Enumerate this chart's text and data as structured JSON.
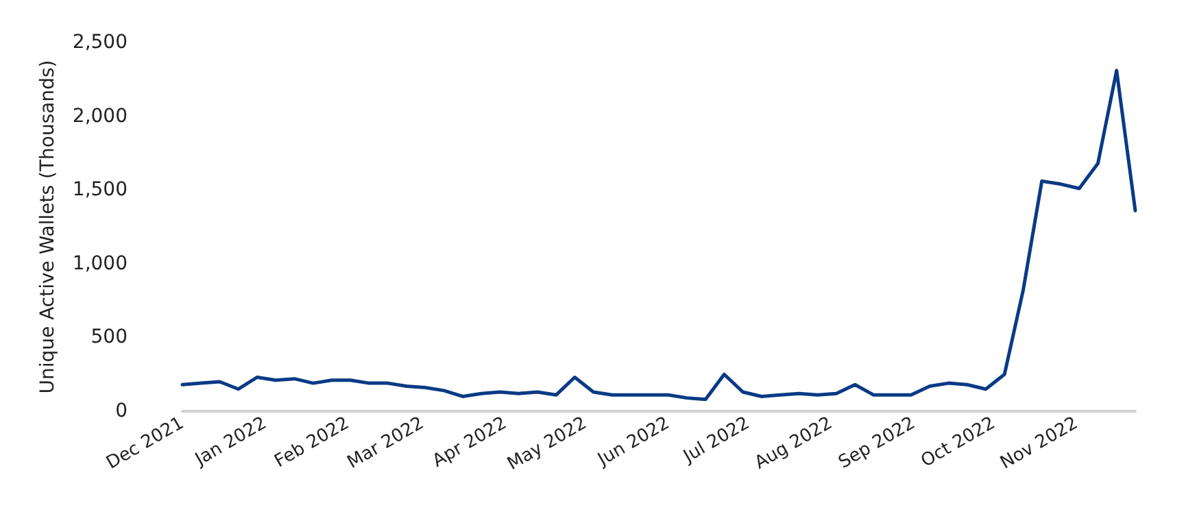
{
  "chart_data": {
    "type": "line",
    "ylabel": "Unique Active Wallets (Thousands)",
    "x": [
      "2021-12-01",
      "2021-12-08",
      "2021-12-15",
      "2021-12-22",
      "2021-12-29",
      "2022-01-05",
      "2022-01-12",
      "2022-01-19",
      "2022-01-26",
      "2022-02-02",
      "2022-02-09",
      "2022-02-16",
      "2022-02-23",
      "2022-03-02",
      "2022-03-09",
      "2022-03-16",
      "2022-03-23",
      "2022-03-30",
      "2022-04-06",
      "2022-04-13",
      "2022-04-20",
      "2022-04-27",
      "2022-05-04",
      "2022-05-11",
      "2022-05-18",
      "2022-05-25",
      "2022-06-01",
      "2022-06-08",
      "2022-06-15",
      "2022-06-22",
      "2022-06-29",
      "2022-07-06",
      "2022-07-13",
      "2022-07-20",
      "2022-07-27",
      "2022-08-03",
      "2022-08-10",
      "2022-08-17",
      "2022-08-24",
      "2022-08-31",
      "2022-09-07",
      "2022-09-14",
      "2022-09-21",
      "2022-09-28",
      "2022-10-05",
      "2022-10-12",
      "2022-10-19",
      "2022-10-26",
      "2022-11-02",
      "2022-11-09",
      "2022-11-16",
      "2022-11-23"
    ],
    "series": [
      {
        "color": "#0a3a85",
        "values": [
          180,
          190,
          200,
          150,
          230,
          210,
          220,
          190,
          210,
          210,
          190,
          190,
          170,
          160,
          140,
          100,
          120,
          130,
          120,
          130,
          110,
          230,
          130,
          110,
          110,
          110,
          110,
          90,
          80,
          250,
          130,
          100,
          110,
          120,
          110,
          120,
          180,
          110,
          110,
          110,
          170,
          190,
          180,
          150,
          250,
          820,
          1560,
          1540,
          1510,
          1680,
          2310,
          1360
        ]
      }
    ],
    "xlim": [
      "2021-12-01",
      "2022-11-23"
    ],
    "xticks": [
      {
        "value": "2021-12-01",
        "label": "Dec 2021"
      },
      {
        "value": "2022-01-01",
        "label": "Jan 2022"
      },
      {
        "value": "2022-02-01",
        "label": "Feb 2022"
      },
      {
        "value": "2022-03-01",
        "label": "Mar 2022"
      },
      {
        "value": "2022-04-01",
        "label": "Apr 2022"
      },
      {
        "value": "2022-05-01",
        "label": "May 2022"
      },
      {
        "value": "2022-06-01",
        "label": "Jun 2022"
      },
      {
        "value": "2022-07-01",
        "label": "Jul 2022"
      },
      {
        "value": "2022-08-01",
        "label": "Aug 2022"
      },
      {
        "value": "2022-09-01",
        "label": "Sep 2022"
      },
      {
        "value": "2022-10-01",
        "label": "Oct 2022"
      },
      {
        "value": "2022-11-01",
        "label": "Nov 2022"
      }
    ],
    "ylim": [
      0,
      2500
    ],
    "yticks": [
      {
        "value": 0,
        "label": "0"
      },
      {
        "value": 500,
        "label": "500"
      },
      {
        "value": 1000,
        "label": "1,000"
      },
      {
        "value": 1500,
        "label": "1,500"
      },
      {
        "value": 2000,
        "label": "2,000"
      },
      {
        "value": 2500,
        "label": "2,500"
      }
    ],
    "grid": false,
    "marker": "none",
    "line_style": "solid"
  }
}
